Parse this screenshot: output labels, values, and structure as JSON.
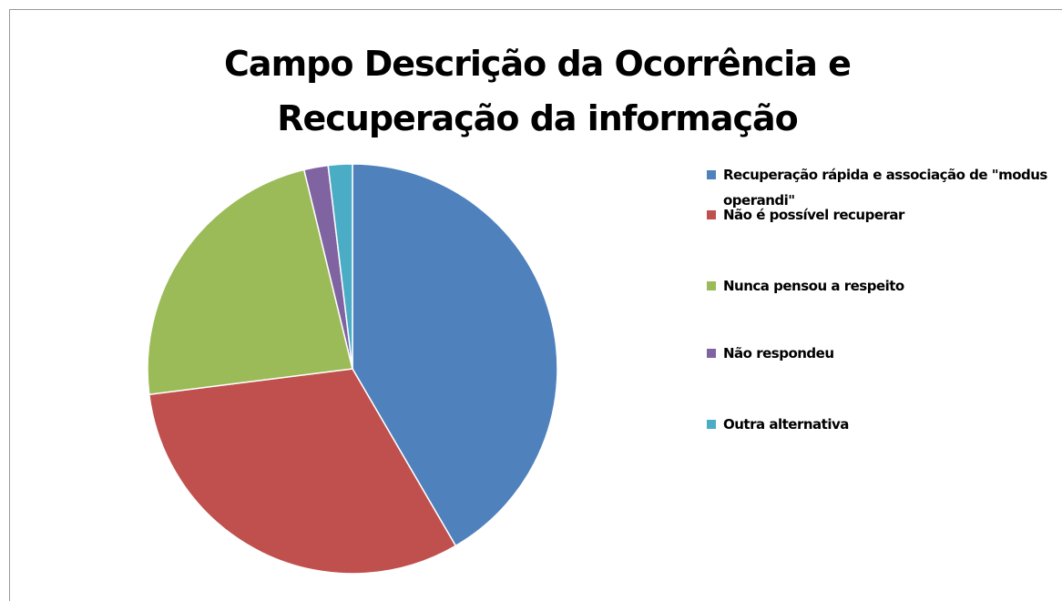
{
  "chart_data": {
    "type": "pie",
    "title": "Campo Descrição da Ocorrência e Recuperação da informação",
    "categories": [
      "Recuperação rápida e associação de \"modus operandi\"",
      "Não é possível recuperar",
      "Nunca pensou a respeito",
      "Não respondeu",
      "Outra alternativa"
    ],
    "values": [
      41.6,
      31.4,
      23.2,
      1.9,
      1.9
    ],
    "colors": [
      "#4f81bd",
      "#c0504d",
      "#9bbb59",
      "#8064a2",
      "#4bacc6"
    ],
    "legend": "right"
  }
}
